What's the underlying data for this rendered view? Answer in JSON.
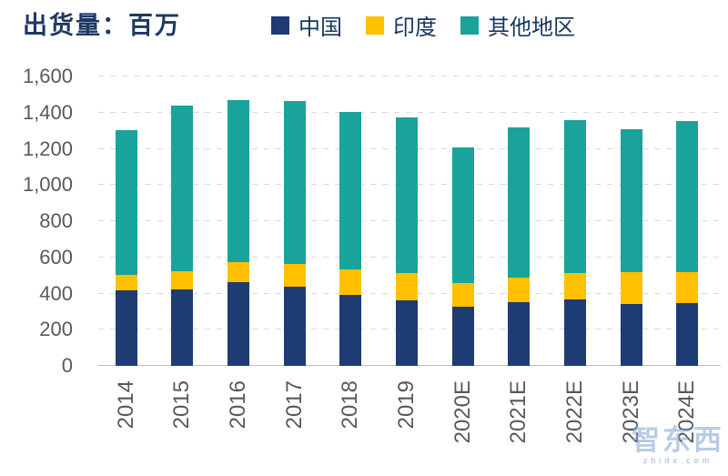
{
  "header": {
    "title": "出货量：百万"
  },
  "chart_data": {
    "type": "bar",
    "stacked": true,
    "title": "出货量：百万",
    "categories": [
      "2014",
      "2015",
      "2016",
      "2017",
      "2018",
      "2019",
      "2020E",
      "2021E",
      "2022E",
      "2023E",
      "2024E"
    ],
    "series": [
      {
        "name": "中国",
        "key": "china",
        "color": "#1E3B73",
        "values": [
          420,
          425,
          465,
          440,
          395,
          360,
          325,
          350,
          365,
          340,
          345
        ]
      },
      {
        "name": "印度",
        "key": "india",
        "color": "#FFC000",
        "values": [
          85,
          100,
          110,
          125,
          140,
          155,
          135,
          140,
          150,
          180,
          175
        ]
      },
      {
        "name": "其他地区",
        "key": "other-regions",
        "color": "#19A39B",
        "values": [
          800,
          915,
          895,
          900,
          870,
          860,
          750,
          830,
          845,
          790,
          835
        ]
      }
    ],
    "totals": [
      1305,
      1440,
      1470,
      1465,
      1405,
      1375,
      1210,
      1320,
      1360,
      1310,
      1355
    ],
    "xlabel": "",
    "ylabel": "",
    "ylim": [
      0,
      1600
    ],
    "ytick_step": 200,
    "ytick_labels": [
      "0",
      "200",
      "400",
      "600",
      "800",
      "1,000",
      "1,200",
      "1,400",
      "1,600"
    ],
    "grid": "dashed-horizontal",
    "legend_position": "top"
  },
  "watermark": {
    "logo": "智东西",
    "url": "zhidx.com"
  },
  "colors": {
    "china": "#1E3B73",
    "india": "#FFC000",
    "other_regions": "#19A39B",
    "title_text": "#1F3864",
    "axis_text": "#595959",
    "gridline": "#D9D9D9",
    "baseline": "#BFBFBF"
  }
}
